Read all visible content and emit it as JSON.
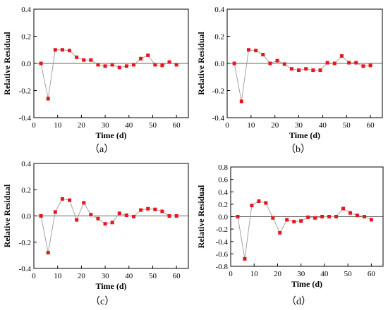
{
  "colors": {
    "marker": "#e8161c",
    "line": "#9a9a9a",
    "axis": "#000000"
  },
  "chart_data": [
    {
      "type": "line",
      "caption": "（a）",
      "xlabel": "Time (d)",
      "ylabel": "Relative Residual",
      "xlim": [
        0,
        65
      ],
      "ylim": [
        -0.4,
        0.4
      ],
      "xticks": [
        0,
        10,
        20,
        30,
        40,
        50,
        60
      ],
      "yticks": [
        -0.4,
        -0.2,
        0.0,
        0.2,
        0.4
      ],
      "ytick_labels": [
        "-0.4",
        "-0.2",
        "0.0",
        "0.2",
        "0.4"
      ],
      "grid": false,
      "reference_line_y": 0,
      "series": [
        {
          "x": [
            3,
            6,
            9,
            12,
            15,
            18,
            21,
            24,
            27,
            30,
            33,
            36,
            39,
            42,
            45,
            48,
            51,
            54,
            57,
            60
          ],
          "y": [
            0.0,
            -0.26,
            0.1,
            0.1,
            0.095,
            0.045,
            0.025,
            0.025,
            -0.01,
            -0.02,
            -0.01,
            -0.03,
            -0.02,
            -0.01,
            0.035,
            0.06,
            -0.01,
            -0.015,
            0.01,
            -0.01
          ]
        }
      ]
    },
    {
      "type": "line",
      "caption": "（b）",
      "xlabel": "Time (d)",
      "ylabel": "Relative Residual",
      "xlim": [
        0,
        65
      ],
      "ylim": [
        -0.4,
        0.4
      ],
      "xticks": [
        0,
        10,
        20,
        30,
        40,
        50,
        60
      ],
      "yticks": [
        -0.4,
        -0.2,
        0.0,
        0.2,
        0.4
      ],
      "ytick_labels": [
        "-0.4",
        "-0.2",
        "0.0",
        "0.2",
        "0.4"
      ],
      "grid": false,
      "reference_line_y": 0,
      "series": [
        {
          "x": [
            3,
            6,
            9,
            12,
            15,
            18,
            21,
            24,
            27,
            30,
            33,
            36,
            39,
            42,
            45,
            48,
            51,
            54,
            57,
            60
          ],
          "y": [
            0.0,
            -0.28,
            0.1,
            0.095,
            0.065,
            0.0,
            0.02,
            -0.005,
            -0.04,
            -0.05,
            -0.04,
            -0.05,
            -0.05,
            0.005,
            0.0,
            0.055,
            0.005,
            0.005,
            -0.02,
            -0.015
          ]
        }
      ]
    },
    {
      "type": "line",
      "caption": "（c）",
      "xlabel": "Time (d)",
      "ylabel": "Relative Residual",
      "xlim": [
        0,
        65
      ],
      "ylim": [
        -0.4,
        0.4
      ],
      "xticks": [
        0,
        10,
        20,
        30,
        40,
        50,
        60
      ],
      "yticks": [
        -0.4,
        -0.2,
        0.0,
        0.2,
        0.4
      ],
      "ytick_labels": [
        "-0.4",
        "-0.2",
        "0.0",
        "0.2",
        "0.4"
      ],
      "grid": false,
      "reference_line_y": 0,
      "series": [
        {
          "x": [
            3,
            6,
            9,
            12,
            15,
            18,
            21,
            24,
            27,
            30,
            33,
            36,
            39,
            42,
            45,
            48,
            51,
            54,
            57,
            60
          ],
          "y": [
            0.0,
            -0.28,
            0.03,
            0.13,
            0.12,
            -0.03,
            0.1,
            0.01,
            -0.02,
            -0.06,
            -0.05,
            0.02,
            0.005,
            -0.005,
            0.045,
            0.055,
            0.05,
            0.035,
            0.0,
            0.0
          ]
        }
      ]
    },
    {
      "type": "line",
      "caption": "（d）",
      "xlabel": "Time (d)",
      "ylabel": "Relative Residual",
      "xlim": [
        0,
        65
      ],
      "ylim": [
        -0.8,
        0.8
      ],
      "xticks": [
        0,
        10,
        20,
        30,
        40,
        50,
        60
      ],
      "yticks": [
        -0.8,
        -0.6,
        -0.4,
        -0.2,
        0.0,
        0.2,
        0.4,
        0.6,
        0.8
      ],
      "ytick_labels": [
        "-0.8",
        "-0.6",
        "-0.4",
        "-0.2",
        "0.0",
        "0.2",
        "0.4",
        "0.6",
        "0.8"
      ],
      "grid": false,
      "reference_line_y": 0,
      "series": [
        {
          "x": [
            3,
            6,
            9,
            12,
            15,
            18,
            21,
            24,
            27,
            30,
            33,
            36,
            39,
            42,
            45,
            48,
            51,
            54,
            57,
            60
          ],
          "y": [
            0.0,
            -0.68,
            0.18,
            0.25,
            0.22,
            -0.02,
            -0.26,
            -0.05,
            -0.08,
            -0.07,
            -0.01,
            -0.02,
            0.0,
            0.0,
            0.0,
            0.13,
            0.06,
            0.02,
            0.0,
            -0.05
          ]
        }
      ]
    }
  ]
}
